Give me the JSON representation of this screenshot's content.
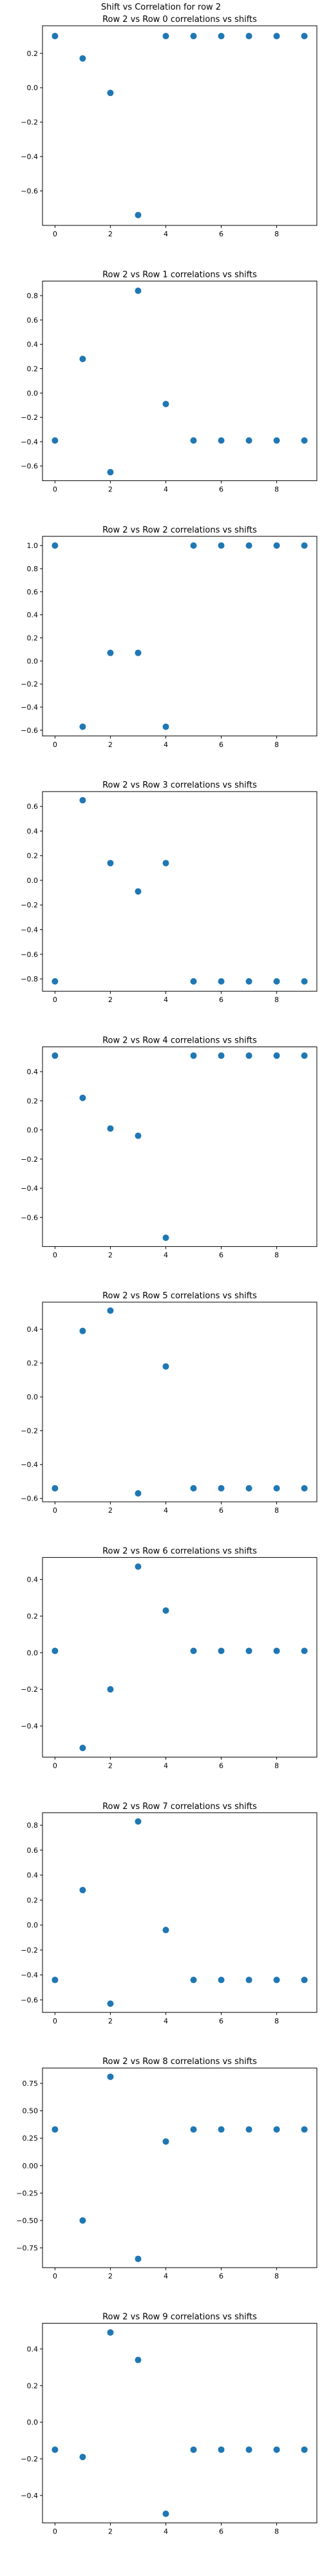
{
  "figure": {
    "suptitle": "Shift vs Correlation for row 2",
    "marker_color": "#1f77b4"
  },
  "chart_data": [
    {
      "type": "scatter",
      "title": "Row 2 vs Row 0 correlations vs shifts",
      "x": [
        0,
        1,
        2,
        3,
        4,
        5,
        6,
        7,
        8,
        9
      ],
      "y": [
        0.3,
        0.17,
        -0.03,
        -0.74,
        0.3,
        0.3,
        0.3,
        0.3,
        0.3,
        0.3
      ],
      "xticks": [
        0,
        2,
        4,
        6,
        8
      ],
      "yticks": [
        -0.6,
        -0.4,
        -0.2,
        0.0,
        0.2
      ],
      "ytick_labels": [
        "−0.6",
        "−0.4",
        "−0.2",
        "0.0",
        "0.2"
      ],
      "xlim": [
        -0.45,
        9.45
      ],
      "ylim": [
        -0.8,
        0.36
      ]
    },
    {
      "type": "scatter",
      "title": "Row 2 vs Row 1 correlations vs shifts",
      "x": [
        0,
        1,
        2,
        3,
        4,
        5,
        6,
        7,
        8,
        9
      ],
      "y": [
        -0.39,
        0.28,
        -0.65,
        0.84,
        -0.09,
        -0.39,
        -0.39,
        -0.39,
        -0.39,
        -0.39
      ],
      "xticks": [
        0,
        2,
        4,
        6,
        8
      ],
      "yticks": [
        -0.6,
        -0.4,
        -0.2,
        0.0,
        0.2,
        0.4,
        0.6,
        0.8
      ],
      "ytick_labels": [
        "−0.6",
        "−0.4",
        "−0.2",
        "0.0",
        "0.2",
        "0.4",
        "0.6",
        "0.8"
      ],
      "xlim": [
        -0.45,
        9.45
      ],
      "ylim": [
        -0.72,
        0.92
      ]
    },
    {
      "type": "scatter",
      "title": "Row 2 vs Row 2 correlations vs shifts",
      "x": [
        0,
        1,
        2,
        3,
        4,
        5,
        6,
        7,
        8,
        9
      ],
      "y": [
        1.0,
        -0.57,
        0.07,
        0.07,
        -0.57,
        1.0,
        1.0,
        1.0,
        1.0,
        1.0
      ],
      "xticks": [
        0,
        2,
        4,
        6,
        8
      ],
      "yticks": [
        -0.6,
        -0.4,
        -0.2,
        0.0,
        0.2,
        0.4,
        0.6,
        0.8,
        1.0
      ],
      "ytick_labels": [
        "−0.6",
        "−0.4",
        "−0.2",
        "0.0",
        "0.2",
        "0.4",
        "0.6",
        "0.8",
        "1.0"
      ],
      "xlim": [
        -0.45,
        9.45
      ],
      "ylim": [
        -0.65,
        1.08
      ]
    },
    {
      "type": "scatter",
      "title": "Row 2 vs Row 3 correlations vs shifts",
      "x": [
        0,
        1,
        2,
        3,
        4,
        5,
        6,
        7,
        8,
        9
      ],
      "y": [
        -0.82,
        0.65,
        0.14,
        -0.09,
        0.14,
        -0.82,
        -0.82,
        -0.82,
        -0.82,
        -0.82
      ],
      "xticks": [
        0,
        2,
        4,
        6,
        8
      ],
      "yticks": [
        -0.8,
        -0.6,
        -0.4,
        -0.2,
        0.0,
        0.2,
        0.4,
        0.6
      ],
      "ytick_labels": [
        "−0.8",
        "−0.6",
        "−0.4",
        "−0.2",
        "0.0",
        "0.2",
        "0.4",
        "0.6"
      ],
      "xlim": [
        -0.45,
        9.45
      ],
      "ylim": [
        -0.9,
        0.72
      ]
    },
    {
      "type": "scatter",
      "title": "Row 2 vs Row 4 correlations vs shifts",
      "x": [
        0,
        1,
        2,
        3,
        4,
        5,
        6,
        7,
        8,
        9
      ],
      "y": [
        0.51,
        0.22,
        0.01,
        -0.04,
        -0.74,
        0.51,
        0.51,
        0.51,
        0.51,
        0.51
      ],
      "xticks": [
        0,
        2,
        4,
        6,
        8
      ],
      "yticks": [
        -0.6,
        -0.4,
        -0.2,
        0.0,
        0.2,
        0.4
      ],
      "ytick_labels": [
        "−0.6",
        "−0.4",
        "−0.2",
        "0.0",
        "0.2",
        "0.4"
      ],
      "xlim": [
        -0.45,
        9.45
      ],
      "ylim": [
        -0.8,
        0.57
      ]
    },
    {
      "type": "scatter",
      "title": "Row 2 vs Row 5 correlations vs shifts",
      "x": [
        0,
        1,
        2,
        3,
        4,
        5,
        6,
        7,
        8,
        9
      ],
      "y": [
        -0.54,
        0.39,
        0.51,
        -0.57,
        0.18,
        -0.54,
        -0.54,
        -0.54,
        -0.54,
        -0.54
      ],
      "xticks": [
        0,
        2,
        4,
        6,
        8
      ],
      "yticks": [
        -0.6,
        -0.4,
        -0.2,
        0.0,
        0.2,
        0.4
      ],
      "ytick_labels": [
        "−0.6",
        "−0.4",
        "−0.2",
        "0.0",
        "0.2",
        "0.4"
      ],
      "xlim": [
        -0.45,
        9.45
      ],
      "ylim": [
        -0.62,
        0.56
      ]
    },
    {
      "type": "scatter",
      "title": "Row 2 vs Row 6 correlations vs shifts",
      "x": [
        0,
        1,
        2,
        3,
        4,
        5,
        6,
        7,
        8,
        9
      ],
      "y": [
        0.01,
        -0.52,
        -0.2,
        0.47,
        0.23,
        0.01,
        0.01,
        0.01,
        0.01,
        0.01
      ],
      "xticks": [
        0,
        2,
        4,
        6,
        8
      ],
      "yticks": [
        -0.4,
        -0.2,
        0.0,
        0.2,
        0.4
      ],
      "ytick_labels": [
        "−0.4",
        "−0.2",
        "0.0",
        "0.2",
        "0.4"
      ],
      "xlim": [
        -0.45,
        9.45
      ],
      "ylim": [
        -0.57,
        0.52
      ]
    },
    {
      "type": "scatter",
      "title": "Row 2 vs Row 7 correlations vs shifts",
      "x": [
        0,
        1,
        2,
        3,
        4,
        5,
        6,
        7,
        8,
        9
      ],
      "y": [
        -0.44,
        0.28,
        -0.63,
        0.83,
        -0.04,
        -0.44,
        -0.44,
        -0.44,
        -0.44,
        -0.44
      ],
      "xticks": [
        0,
        2,
        4,
        6,
        8
      ],
      "yticks": [
        -0.6,
        -0.4,
        -0.2,
        0.0,
        0.2,
        0.4,
        0.6,
        0.8
      ],
      "ytick_labels": [
        "−0.6",
        "−0.4",
        "−0.2",
        "0.0",
        "0.2",
        "0.4",
        "0.6",
        "0.8"
      ],
      "xlim": [
        -0.45,
        9.45
      ],
      "ylim": [
        -0.7,
        0.9
      ]
    },
    {
      "type": "scatter",
      "title": "Row 2 vs Row 8 correlations vs shifts",
      "x": [
        0,
        1,
        2,
        3,
        4,
        5,
        6,
        7,
        8,
        9
      ],
      "y": [
        0.33,
        -0.5,
        0.81,
        -0.85,
        0.22,
        0.33,
        0.33,
        0.33,
        0.33,
        0.33
      ],
      "xticks": [
        0,
        2,
        4,
        6,
        8
      ],
      "yticks": [
        -0.75,
        -0.5,
        -0.25,
        0.0,
        0.25,
        0.5,
        0.75
      ],
      "ytick_labels": [
        "−0.75",
        "−0.50",
        "−0.25",
        "0.00",
        "0.25",
        "0.50",
        "0.75"
      ],
      "xlim": [
        -0.45,
        9.45
      ],
      "ylim": [
        -0.93,
        0.89
      ]
    },
    {
      "type": "scatter",
      "title": "Row 2 vs Row 9 correlations vs shifts",
      "x": [
        0,
        1,
        2,
        3,
        4,
        5,
        6,
        7,
        8,
        9
      ],
      "y": [
        -0.15,
        -0.19,
        0.49,
        0.34,
        -0.5,
        -0.15,
        -0.15,
        -0.15,
        -0.15,
        -0.15
      ],
      "xticks": [
        0,
        2,
        4,
        6,
        8
      ],
      "yticks": [
        -0.4,
        -0.2,
        0.0,
        0.2,
        0.4
      ],
      "ytick_labels": [
        "−0.4",
        "−0.2",
        "0.0",
        "0.2",
        "0.4"
      ],
      "xlim": [
        -0.45,
        9.45
      ],
      "ylim": [
        -0.55,
        0.54
      ]
    }
  ]
}
